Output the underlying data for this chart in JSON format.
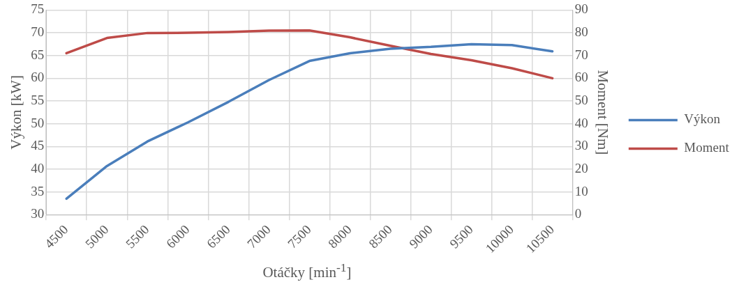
{
  "chart_data": {
    "type": "line",
    "xlabel": "Otáčky [min$^{-1}$]",
    "ylabel": "Výkon [kW]",
    "y2label": "Moment [Nm]",
    "categories": [
      "4500",
      "5000",
      "5500",
      "6000",
      "6500",
      "7000",
      "7500",
      "8000",
      "8500",
      "9000",
      "9500",
      "10000",
      "10500"
    ],
    "series": [
      {
        "name": "Výkon",
        "color": "#4a7ebb",
        "values": [
          33.5,
          40.7,
          46.1,
          50.3,
          54.8,
          59.6,
          63.8,
          65.5,
          66.5,
          66.9,
          67.5,
          67.3,
          65.9
        ]
      },
      {
        "name": "Moment",
        "color": "#be4b48",
        "axis": "y2",
        "values": [
          71.0,
          77.7,
          79.9,
          80.0,
          80.3,
          80.9,
          81.0,
          78.0,
          74.3,
          70.7,
          67.9,
          64.4,
          60.0
        ]
      }
    ],
    "ylim": [
      30,
      75
    ],
    "yticks": [
      30,
      35,
      40,
      45,
      50,
      55,
      60,
      65,
      70,
      75
    ],
    "y2lim": [
      0,
      90
    ],
    "y2ticks": [
      0,
      10,
      20,
      30,
      40,
      50,
      60,
      70,
      80,
      90
    ],
    "grid": true,
    "legend": "right",
    "marker": "none",
    "line_style": "solid"
  }
}
